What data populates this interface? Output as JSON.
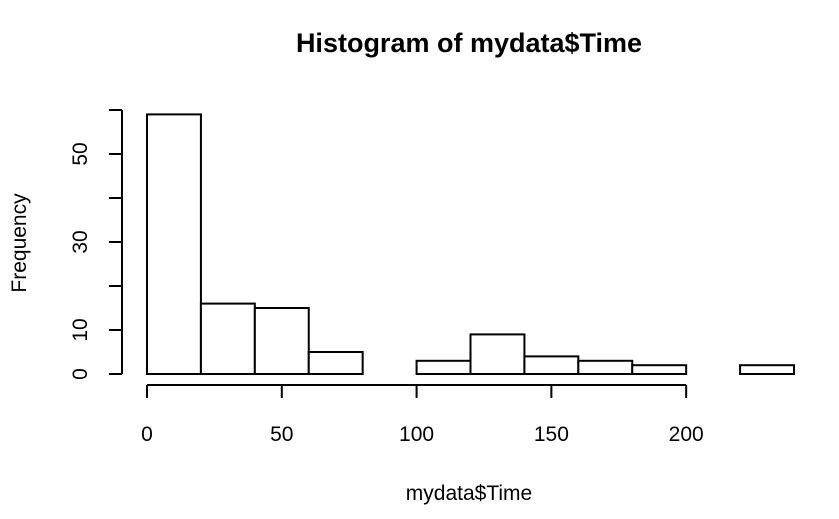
{
  "chart_data": {
    "type": "bar",
    "title": "Histogram of mydata$Time",
    "xlabel": "mydata$Time",
    "ylabel": "Frequency",
    "bins": [
      {
        "start": 0,
        "end": 20,
        "count": 59
      },
      {
        "start": 20,
        "end": 40,
        "count": 16
      },
      {
        "start": 40,
        "end": 60,
        "count": 15
      },
      {
        "start": 60,
        "end": 80,
        "count": 5
      },
      {
        "start": 80,
        "end": 100,
        "count": 0
      },
      {
        "start": 100,
        "end": 120,
        "count": 3
      },
      {
        "start": 120,
        "end": 140,
        "count": 9
      },
      {
        "start": 140,
        "end": 160,
        "count": 4
      },
      {
        "start": 160,
        "end": 180,
        "count": 3
      },
      {
        "start": 180,
        "end": 200,
        "count": 2
      },
      {
        "start": 200,
        "end": 220,
        "count": 0
      },
      {
        "start": 220,
        "end": 240,
        "count": 2
      }
    ],
    "xlim": [
      0,
      240
    ],
    "ylim": [
      0,
      60
    ],
    "x_ticks": [
      0,
      50,
      100,
      150,
      200
    ],
    "y_ticks": [
      0,
      10,
      30,
      50
    ],
    "y_minor_ticks": [
      20,
      40,
      60
    ],
    "grid": false,
    "legend": "none"
  }
}
